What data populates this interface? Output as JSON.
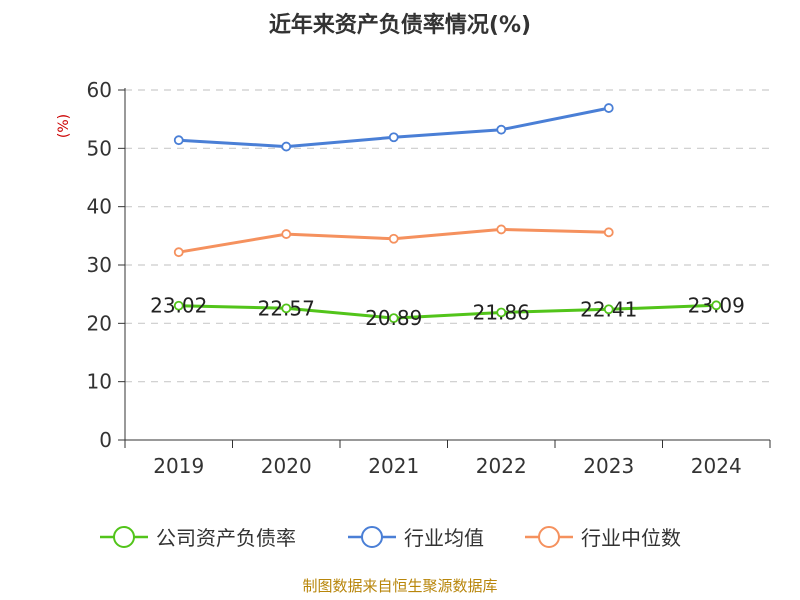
{
  "chart_data": {
    "type": "line",
    "title": "近年来资产负债率情况(%)",
    "y_unit": "(%)",
    "categories": [
      "2019",
      "2020",
      "2021",
      "2022",
      "2023",
      "2024"
    ],
    "y_ticks": [
      "0",
      "10",
      "20",
      "30",
      "40",
      "50",
      "60"
    ],
    "ylim": [
      0,
      60
    ],
    "grid": true,
    "legend_position": "bottom",
    "series": [
      {
        "name": "公司资产负债率",
        "color": "#52c41a",
        "values": [
          23.02,
          22.57,
          20.89,
          21.86,
          22.41,
          23.09
        ],
        "labels": [
          "23.02",
          "22.57",
          "20.89",
          "21.86",
          "22.41",
          "23.09"
        ]
      },
      {
        "name": "行业均值",
        "color": "#4a7fd6",
        "values": [
          51.4,
          50.3,
          51.9,
          53.2,
          56.9,
          null
        ]
      },
      {
        "name": "行业中位数",
        "color": "#f5915e",
        "values": [
          32.2,
          35.3,
          34.5,
          36.1,
          35.6,
          null
        ]
      }
    ],
    "source": "制图数据来自恒生聚源数据库"
  }
}
